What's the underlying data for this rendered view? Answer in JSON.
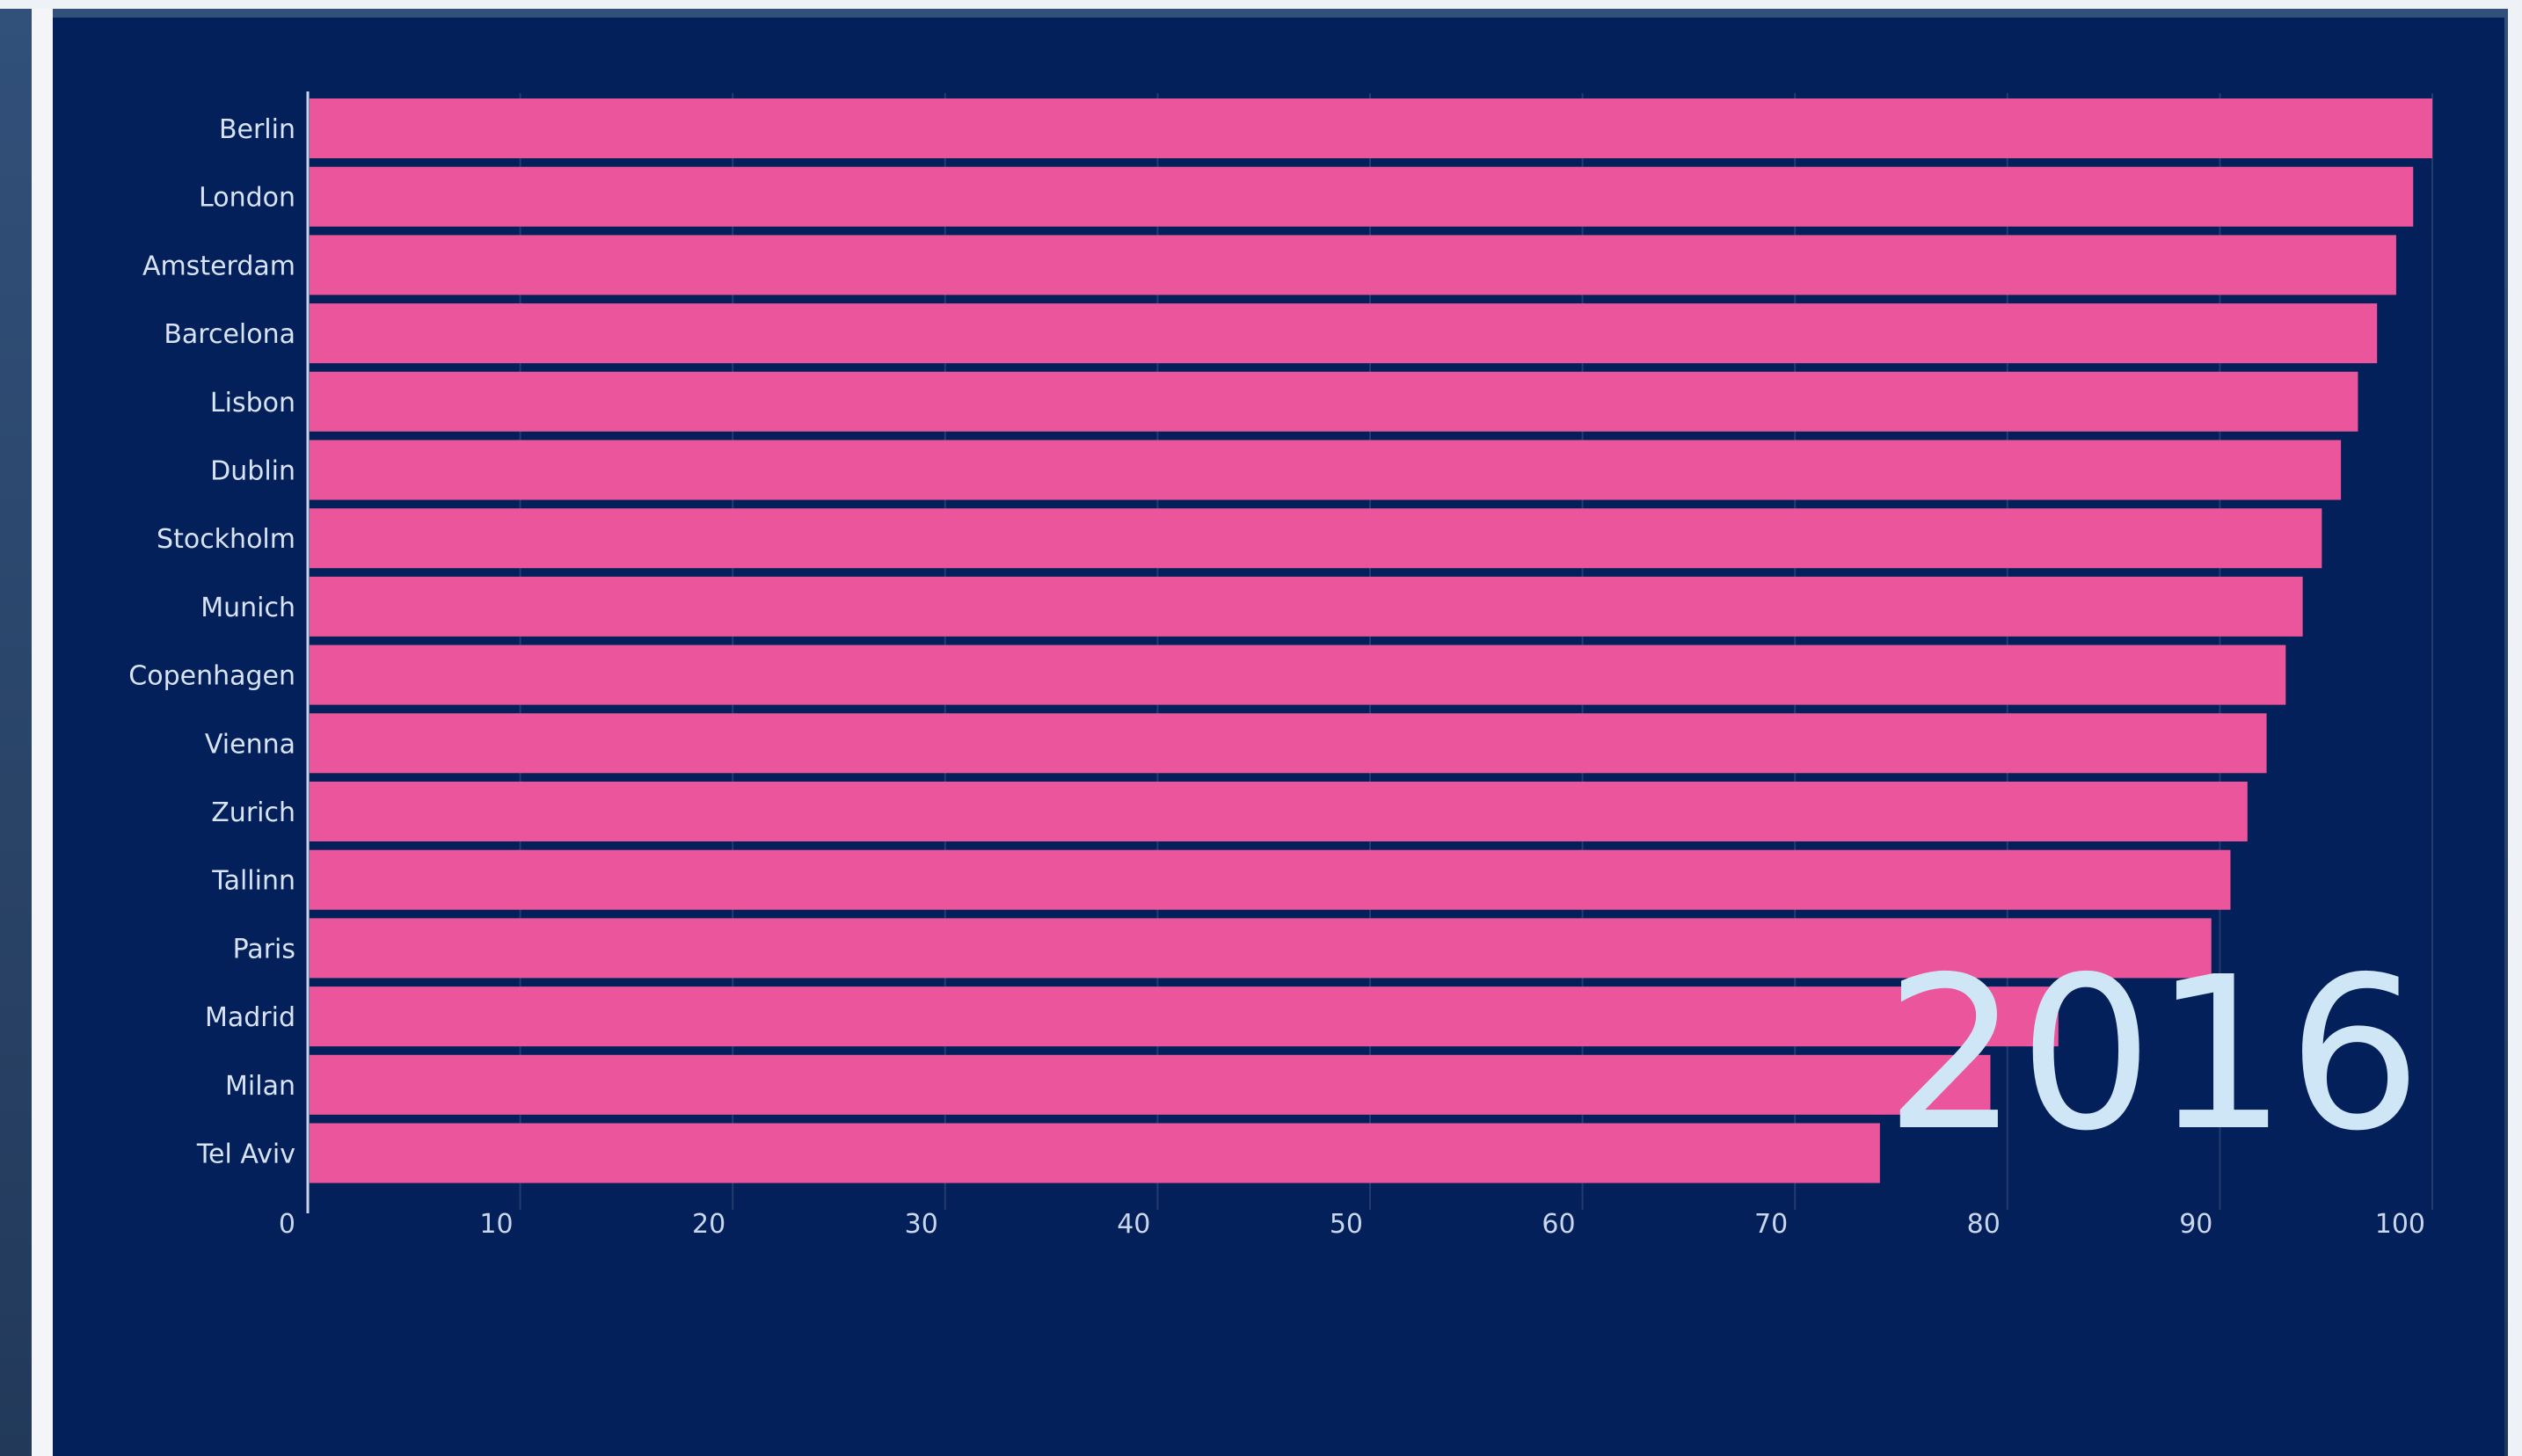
{
  "chart_data": {
    "type": "bar",
    "orientation": "horizontal",
    "categories": [
      "Berlin",
      "London",
      "Amsterdam",
      "Barcelona",
      "Lisbon",
      "Dublin",
      "Stockholm",
      "Munich",
      "Copenhagen",
      "Vienna",
      "Zurich",
      "Tallinn",
      "Paris",
      "Madrid",
      "Milan",
      "Tel Aviv"
    ],
    "values": [
      100,
      99.1,
      98.3,
      97.4,
      96.5,
      95.7,
      94.8,
      93.9,
      93.1,
      92.2,
      91.3,
      90.5,
      89.6,
      82.4,
      79.2,
      74.0
    ],
    "title": "",
    "xlabel": "",
    "ylabel": "",
    "xlim": [
      0,
      100
    ],
    "xticks": [
      "0",
      "10",
      "20",
      "30",
      "40",
      "50",
      "60",
      "70",
      "80",
      "90",
      "100"
    ],
    "grid": true,
    "year": "2016",
    "colors": {
      "bar": "#ea559b",
      "background": "#04205a",
      "grid": "#233c70",
      "label": "#d8e3f5",
      "year": "#cfe6f7"
    }
  }
}
